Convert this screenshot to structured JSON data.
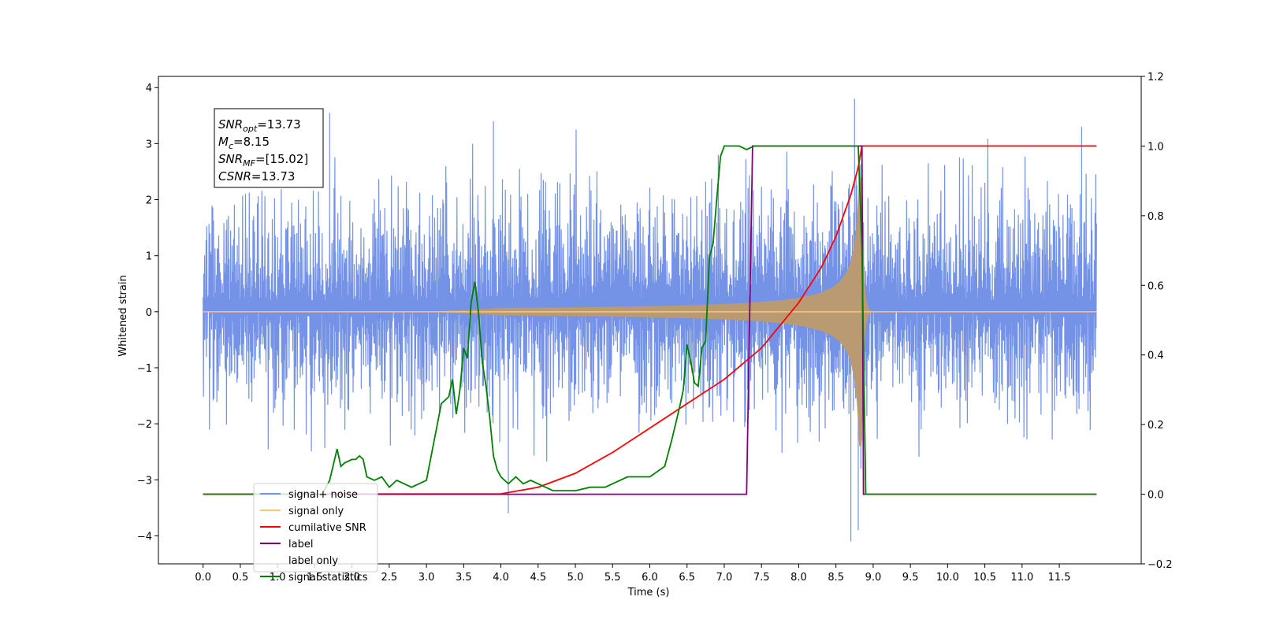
{
  "chart_data": {
    "type": "line",
    "xlabel": "Time (s)",
    "ylabel": "Whitened strain",
    "xlim": [
      -0.6,
      12.6
    ],
    "ylim_left": [
      -4.5,
      4.2
    ],
    "ylim_right": [
      -0.2,
      1.2
    ],
    "x_ticks": [
      "0.0",
      "0.5",
      "1.0",
      "1.5",
      "2.0",
      "2.5",
      "3.0",
      "3.5",
      "4.0",
      "4.5",
      "5.0",
      "5.5",
      "6.0",
      "6.5",
      "7.0",
      "7.5",
      "8.0",
      "8.5",
      "9.0",
      "9.5",
      "10.0",
      "10.5",
      "11.0",
      "11.5"
    ],
    "y_left_ticks": [
      "−4",
      "−3",
      "−2",
      "−1",
      "0",
      "1",
      "2",
      "3",
      "4"
    ],
    "y_right_ticks": [
      "−0.2",
      "0.0",
      "0.2",
      "0.4",
      "0.6",
      "0.8",
      "1.0",
      "1.2"
    ],
    "annotation": {
      "lines": [
        {
          "base": "SNR",
          "sub": "opt",
          "rest": "=13.73"
        },
        {
          "base": "M",
          "sub": "c",
          "rest": "=8.15"
        },
        {
          "base": "SNR",
          "sub": "MF",
          "rest": "=[15.02]"
        },
        {
          "base": "CSNR",
          "sub": "",
          "rest": "=13.73"
        }
      ]
    },
    "legend": {
      "placement": "lower-left",
      "entries": [
        {
          "label": "signal+ noise",
          "color": "#7492e6"
        },
        {
          "label": "signal only",
          "color": "#f5c77e"
        },
        {
          "label": "cumilative SNR",
          "color": "#ff0000"
        },
        {
          "label": "label",
          "color": "#800080"
        },
        {
          "label": "label only",
          "color": "#ffffff"
        },
        {
          "label": "signal statistics",
          "color": "#008000"
        }
      ]
    },
    "series": [
      {
        "name": "signal+ noise",
        "axis": "left",
        "color": "#7492e6",
        "x_range": [
          0.0,
          12.0
        ],
        "envelope_typical": [
          -2.2,
          2.4
        ],
        "extremes": [
          [
            1.7,
            3.55
          ],
          [
            3.9,
            3.4
          ],
          [
            8.75,
            3.8
          ],
          [
            8.7,
            -4.1
          ],
          [
            8.8,
            -3.9
          ],
          [
            4.1,
            -3.6
          ],
          [
            11.8,
            3.3
          ]
        ]
      },
      {
        "name": "signal only",
        "axis": "left",
        "color": "#f5c77e",
        "fill_color": "#b99a72",
        "merger_time": 8.85,
        "peak_amplitude": 2.4
      },
      {
        "name": "cumilative SNR",
        "axis": "right",
        "color": "#ff0000",
        "x": [
          0.0,
          4.0,
          4.5,
          5.0,
          5.5,
          6.0,
          6.5,
          7.0,
          7.5,
          8.0,
          8.3,
          8.5,
          8.7,
          8.8,
          8.85,
          12.0
        ],
        "y": [
          0.0,
          0.001,
          0.02,
          0.06,
          0.12,
          0.19,
          0.26,
          0.33,
          0.42,
          0.55,
          0.65,
          0.74,
          0.86,
          0.94,
          1.0,
          1.0
        ]
      },
      {
        "name": "label",
        "axis": "right",
        "color": "#800080",
        "x": [
          0.0,
          7.3,
          7.38,
          8.85,
          8.87,
          12.0
        ],
        "y": [
          0.0,
          0.0,
          1.0,
          1.0,
          0.0,
          0.0
        ]
      },
      {
        "name": "signal statistics",
        "axis": "right",
        "color": "#008000",
        "x": [
          0.0,
          1.6,
          1.7,
          1.8,
          1.85,
          1.9,
          2.0,
          2.05,
          2.1,
          2.15,
          2.2,
          2.3,
          2.4,
          2.5,
          2.6,
          2.7,
          2.8,
          2.9,
          3.0,
          3.1,
          3.2,
          3.3,
          3.35,
          3.4,
          3.45,
          3.5,
          3.55,
          3.6,
          3.65,
          3.7,
          3.75,
          3.8,
          3.85,
          3.9,
          3.95,
          4.0,
          4.1,
          4.2,
          4.3,
          4.4,
          4.5,
          4.6,
          4.7,
          4.8,
          5.0,
          5.2,
          5.4,
          5.6,
          5.7,
          5.8,
          6.0,
          6.2,
          6.3,
          6.4,
          6.45,
          6.5,
          6.55,
          6.6,
          6.65,
          6.7,
          6.75,
          6.8,
          6.85,
          6.9,
          6.95,
          7.0,
          7.1,
          7.2,
          7.3,
          7.4,
          8.0,
          8.5,
          8.8,
          8.85,
          8.9,
          12.0
        ],
        "y": [
          0.0,
          0.0,
          0.04,
          0.13,
          0.08,
          0.09,
          0.1,
          0.1,
          0.11,
          0.1,
          0.05,
          0.04,
          0.05,
          0.02,
          0.04,
          0.03,
          0.02,
          0.03,
          0.04,
          0.15,
          0.26,
          0.28,
          0.33,
          0.23,
          0.3,
          0.42,
          0.39,
          0.55,
          0.61,
          0.52,
          0.38,
          0.31,
          0.22,
          0.11,
          0.07,
          0.05,
          0.03,
          0.05,
          0.03,
          0.04,
          0.03,
          0.02,
          0.01,
          0.01,
          0.01,
          0.02,
          0.02,
          0.04,
          0.05,
          0.05,
          0.05,
          0.08,
          0.16,
          0.25,
          0.3,
          0.43,
          0.38,
          0.32,
          0.31,
          0.42,
          0.44,
          0.68,
          0.72,
          0.85,
          0.97,
          1.0,
          1.0,
          1.0,
          0.99,
          1.0,
          1.0,
          1.0,
          1.0,
          0.7,
          0.0,
          0.0
        ]
      }
    ]
  }
}
